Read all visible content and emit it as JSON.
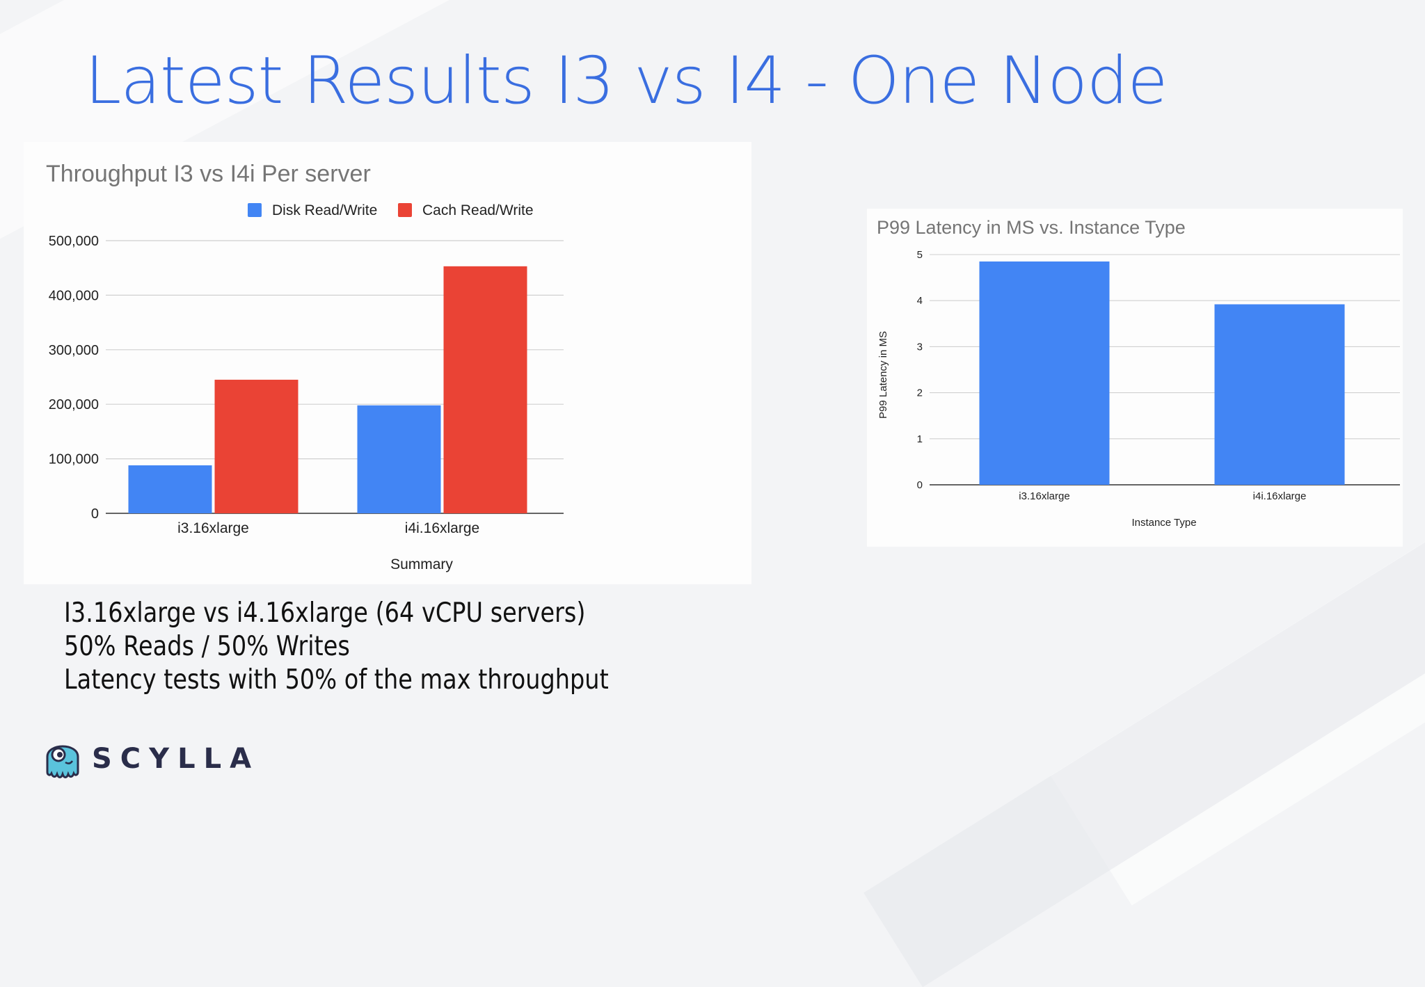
{
  "slide": {
    "title": "Latest Results I3 vs I4 - One Node",
    "notes": [
      "I3.16xlarge vs i4.16xlarge (64 vCPU servers)",
      "50% Reads / 50% Writes",
      "Latency tests with 50% of the max throughput"
    ],
    "logo_text": "SCYLLA"
  },
  "colors": {
    "title": "#3a6ee0",
    "series_disk": "#4285f4",
    "series_cache": "#ea4335",
    "chart_text": "#757575",
    "axis_text": "#222222"
  },
  "chart_data": [
    {
      "type": "bar",
      "title": "Throughput I3 vs I4i Per server",
      "xlabel": "Summary",
      "ylabel": "",
      "categories": [
        "i3.16xlarge",
        "i4i.16xlarge"
      ],
      "series": [
        {
          "name": "Disk Read/Write",
          "values": [
            88000,
            198000
          ]
        },
        {
          "name": "Cach Read/Write",
          "values": [
            245000,
            453000
          ]
        }
      ],
      "ylim": [
        0,
        500000
      ],
      "yticks": [
        "0",
        "100,000",
        "200,000",
        "300,000",
        "400,000",
        "500,000"
      ],
      "grid": true,
      "legend": "top"
    },
    {
      "type": "bar",
      "title": "P99 Latency in MS vs. Instance Type",
      "xlabel": "Instance Type",
      "ylabel": "P99 Latency in MS",
      "categories": [
        "i3.16xlarge",
        "i4i.16xlarge"
      ],
      "values": [
        4.85,
        3.92
      ],
      "ylim": [
        0,
        5
      ],
      "yticks": [
        "0",
        "1",
        "2",
        "3",
        "4",
        "5"
      ],
      "grid": true,
      "legend": "none"
    }
  ]
}
